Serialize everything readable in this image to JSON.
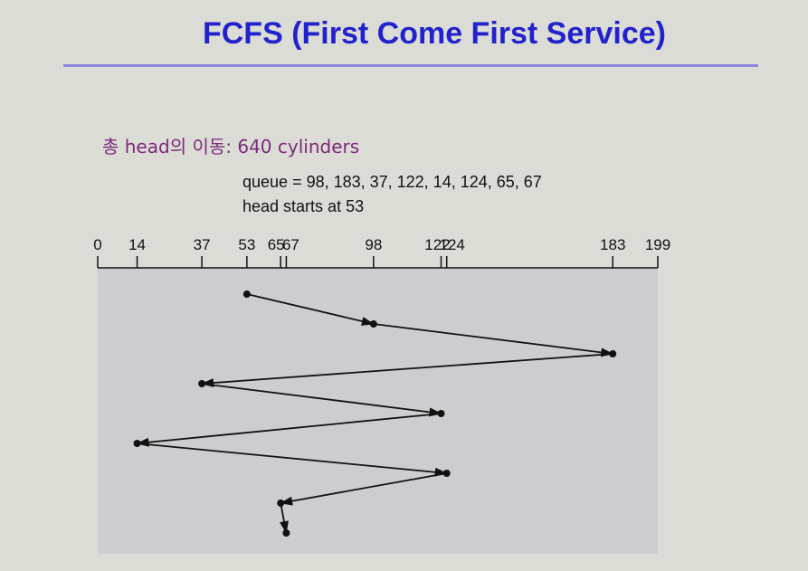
{
  "slide": {
    "title": "FCFS (First Come First Service)",
    "total_movement": "총 head의 이동: 640 cylinders",
    "queue_text": "queue = 98, 183, 37, 122, 14, 124, 65, 67",
    "start_text": "head starts at 53"
  },
  "axis": {
    "min": 0,
    "max": 199,
    "tick_labels": [
      0,
      14,
      37,
      53,
      65,
      67,
      98,
      122,
      124,
      183,
      199
    ]
  },
  "head_path": [
    53,
    98,
    183,
    37,
    122,
    14,
    124,
    65,
    67
  ],
  "colors": {
    "title": "#2222cc",
    "rule": "#8a8ae0",
    "total_text": "#7a2a7a",
    "panel": "#cdcdd1",
    "line": "#111111"
  }
}
